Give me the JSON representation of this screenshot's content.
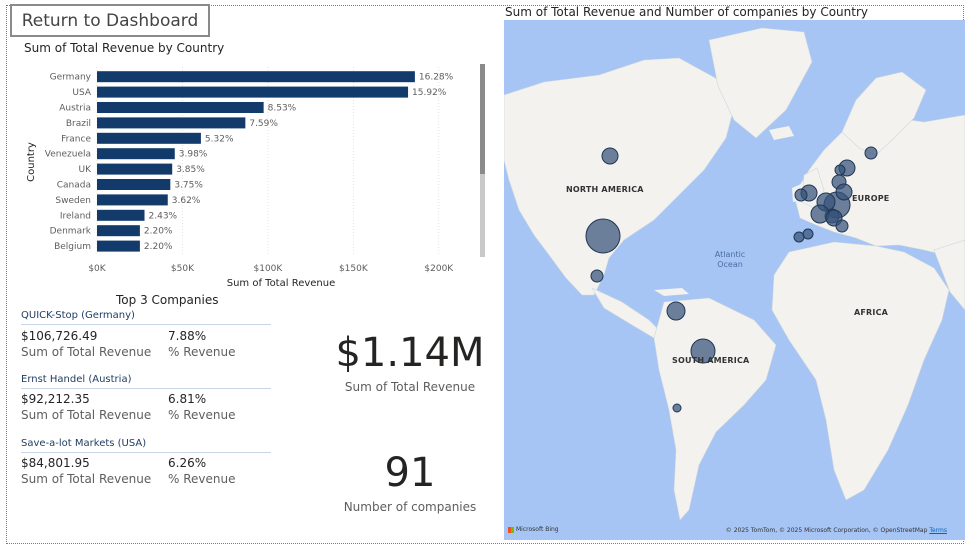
{
  "return_button": {
    "label": "Return to Dashboard"
  },
  "bar_chart": {
    "title": "Sum of Total Revenue by Country",
    "ylabel": "Country",
    "xlabel": "Sum of Total Revenue"
  },
  "chart_data": {
    "type": "bar",
    "orientation": "horizontal",
    "title": "Sum of Total Revenue by Country",
    "xlabel": "Sum of Total Revenue",
    "ylabel": "Country",
    "categories": [
      "Germany",
      "USA",
      "Austria",
      "Brazil",
      "France",
      "Venezuela",
      "UK",
      "Canada",
      "Sweden",
      "Ireland",
      "Denmark",
      "Belgium"
    ],
    "values": [
      186000,
      182000,
      97500,
      86800,
      60800,
      45500,
      44000,
      42900,
      41400,
      27800,
      25100,
      25100
    ],
    "data_labels": [
      "16.28%",
      "15.92%",
      "8.53%",
      "7.59%",
      "5.32%",
      "3.98%",
      "3.85%",
      "3.75%",
      "3.62%",
      "2.43%",
      "2.20%",
      "2.20%"
    ],
    "xticks": [
      "$0K",
      "$50K",
      "$100K",
      "$150K",
      "$200K"
    ],
    "xlim": [
      0,
      220000
    ],
    "grid": true,
    "color": "#123a6b"
  },
  "top3": {
    "title": "Top 3 Companies",
    "companies": [
      {
        "name": "QUICK-Stop (Germany)",
        "revenue": "$106,726.49",
        "revenue_label": "Sum of Total Revenue",
        "pct": "7.88%",
        "pct_label": "% Revenue"
      },
      {
        "name": "Ernst Handel (Austria)",
        "revenue": "$92,212.35",
        "revenue_label": "Sum of Total Revenue",
        "pct": "6.81%",
        "pct_label": "% Revenue"
      },
      {
        "name": "Save-a-lot Markets (USA)",
        "revenue": "$84,801.95",
        "revenue_label": "Sum of Total Revenue",
        "pct": "6.26%",
        "pct_label": "% Revenue"
      }
    ]
  },
  "kpi_revenue": {
    "value": "$1.14M",
    "label": "Sum of Total Revenue"
  },
  "kpi_companies": {
    "value": "91",
    "label": "Number of companies"
  },
  "map": {
    "title": "Sum of Total Revenue and Number of companies by Country",
    "labels": {
      "north_america": "NORTH AMERICA",
      "south_america": "SOUTH AMERICA",
      "europe": "EUROPE",
      "africa": "AFRICA",
      "ocean_line1": "Atlantic",
      "ocean_line2": "Ocean"
    },
    "logo": "Microsoft Bing",
    "attribution": "© 2025 TomTom, © 2025 Microsoft Corporation, © OpenStreetMap",
    "terms": "Terms",
    "bubble_color": "#36527a"
  }
}
